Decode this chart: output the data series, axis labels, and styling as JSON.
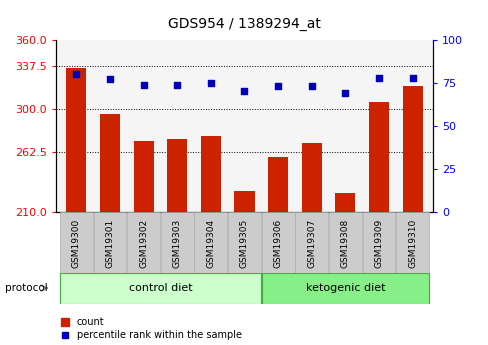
{
  "title": "GDS954 / 1389294_at",
  "samples": [
    "GSM19300",
    "GSM19301",
    "GSM19302",
    "GSM19303",
    "GSM19304",
    "GSM19305",
    "GSM19306",
    "GSM19307",
    "GSM19308",
    "GSM19309",
    "GSM19310"
  ],
  "counts": [
    335,
    295,
    272,
    274,
    276,
    228,
    258,
    270,
    227,
    306,
    320
  ],
  "percentiles": [
    80,
    77,
    74,
    74,
    75,
    70,
    73,
    73,
    69,
    78,
    78
  ],
  "ylim_left": [
    210,
    360
  ],
  "ylim_right": [
    0,
    100
  ],
  "yticks_left": [
    210,
    262.5,
    300,
    337.5,
    360
  ],
  "yticks_right": [
    0,
    25,
    50,
    75,
    100
  ],
  "bar_color": "#cc2200",
  "dot_color": "#0000bb",
  "grid_lines": [
    262.5,
    300,
    337.5
  ],
  "control_label": "control diet",
  "ketogenic_label": "ketogenic diet",
  "protocol_label": "protocol",
  "legend_count": "count",
  "legend_percentile": "percentile rank within the sample",
  "n_control": 6,
  "n_ketogenic": 5,
  "plot_bg": "#f5f5f5",
  "control_bg": "#ccffcc",
  "ketogenic_bg": "#88ee88",
  "label_bg": "#cccccc",
  "label_edge": "#aaaaaa"
}
